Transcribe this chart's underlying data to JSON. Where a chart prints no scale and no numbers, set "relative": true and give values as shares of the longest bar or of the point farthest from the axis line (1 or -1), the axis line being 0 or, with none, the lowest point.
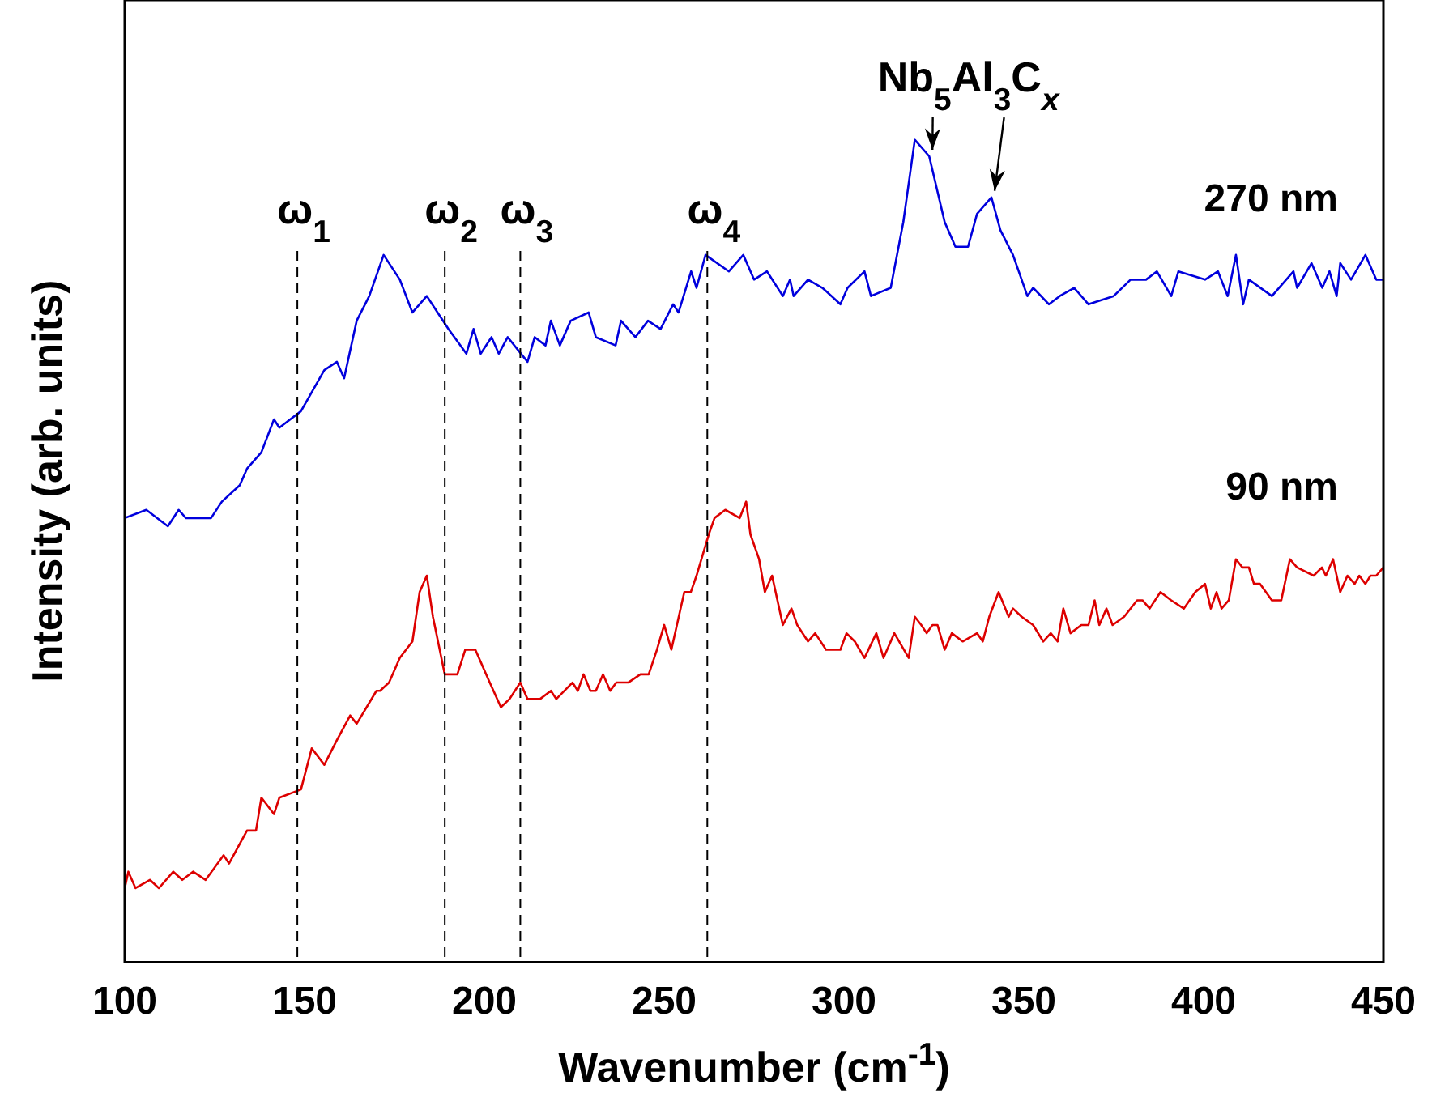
{
  "chart_data": {
    "type": "line",
    "relative": true,
    "xlabel": "Wavenumber (cm$^{-1}$)",
    "ylabel": "Intensity (arb. units)",
    "xlim": [
      100,
      450
    ],
    "xticks": [
      100,
      150,
      200,
      250,
      300,
      350,
      400,
      450
    ],
    "grid": false,
    "legend": false,
    "marker": "none",
    "line_style": "solid",
    "series": [
      {
        "name": "270 nm",
        "color": "#0000dd",
        "x": [
          100,
          106,
          112,
          115,
          117,
          124,
          127,
          132,
          134,
          138,
          141.5,
          143,
          149,
          155.5,
          159,
          161,
          164.5,
          168,
          172,
          176.5,
          180,
          184,
          187,
          190,
          195,
          197,
          199,
          202,
          204,
          206.5,
          212,
          214,
          217,
          218.5,
          221,
          224,
          229,
          231,
          236.5,
          238,
          242,
          245.5,
          249,
          252.5,
          254,
          257.5,
          259,
          261.5,
          268,
          272,
          275,
          278.6,
          283,
          285,
          286,
          290,
          294,
          299,
          301,
          305.7,
          307.5,
          313,
          316.5,
          319.7,
          323.7,
          328,
          331,
          334.5,
          337,
          341,
          343.5,
          347,
          351,
          352.6,
          357,
          360,
          364,
          368,
          375,
          379.7,
          384,
          387,
          391,
          393,
          400.4,
          404,
          406.7,
          409,
          411,
          412.6,
          419,
          425,
          426,
          430,
          433,
          435,
          437,
          438,
          441,
          445,
          448,
          450
        ],
        "values": [
          0.54,
          0.55,
          0.53,
          0.55,
          0.54,
          0.54,
          0.56,
          0.58,
          0.6,
          0.62,
          0.66,
          0.65,
          0.67,
          0.72,
          0.73,
          0.71,
          0.78,
          0.81,
          0.86,
          0.83,
          0.79,
          0.81,
          0.79,
          0.77,
          0.74,
          0.77,
          0.74,
          0.76,
          0.74,
          0.76,
          0.73,
          0.76,
          0.75,
          0.78,
          0.75,
          0.78,
          0.79,
          0.76,
          0.75,
          0.78,
          0.76,
          0.78,
          0.77,
          0.8,
          0.79,
          0.84,
          0.82,
          0.86,
          0.84,
          0.86,
          0.83,
          0.84,
          0.81,
          0.83,
          0.81,
          0.83,
          0.82,
          0.8,
          0.82,
          0.84,
          0.81,
          0.82,
          0.9,
          1.0,
          0.98,
          0.9,
          0.87,
          0.87,
          0.91,
          0.93,
          0.89,
          0.86,
          0.81,
          0.82,
          0.8,
          0.81,
          0.82,
          0.8,
          0.81,
          0.83,
          0.83,
          0.84,
          0.81,
          0.84,
          0.83,
          0.84,
          0.81,
          0.86,
          0.8,
          0.83,
          0.81,
          0.84,
          0.82,
          0.85,
          0.82,
          0.84,
          0.81,
          0.85,
          0.83,
          0.86,
          0.83,
          0.83
        ]
      },
      {
        "name": "90 nm",
        "color": "#dd0000",
        "x": [
          100,
          101,
          103,
          107,
          109.5,
          113.5,
          116,
          119,
          122.5,
          127.5,
          129,
          134,
          136.5,
          138,
          141.5,
          143,
          149,
          152,
          155.5,
          159,
          162.7,
          164.5,
          170,
          171,
          173.5,
          176.5,
          180,
          182,
          184,
          185.7,
          189,
          192.5,
          194.7,
          197.5,
          201.5,
          204.6,
          207,
          210,
          212,
          215.5,
          218.5,
          220,
          224.5,
          226,
          227.6,
          229.5,
          231,
          233,
          235,
          236.7,
          240,
          243.4,
          245.7,
          248,
          250,
          252,
          255.6,
          257.4,
          259,
          262.4,
          264,
          267,
          271,
          272.8,
          274,
          276.4,
          278,
          280,
          283,
          285.4,
          287,
          290,
          292,
          295,
          299,
          300.7,
          303,
          305.7,
          309,
          311,
          314,
          318,
          319.7,
          321.5,
          323,
          324.6,
          326,
          328,
          330,
          333,
          337,
          338.6,
          340.4,
          343,
          345.8,
          347,
          349.4,
          352.6,
          355.4,
          357.5,
          359.4,
          361,
          363,
          366,
          368,
          369.7,
          371,
          373,
          374.7,
          377.9,
          381.5,
          383,
          385,
          388,
          391,
          394.5,
          397.7,
          400.4,
          402,
          403.6,
          405,
          407,
          409,
          410.8,
          412.6,
          414,
          415.7,
          419,
          421.6,
          424,
          426,
          430.6,
          432.9,
          434,
          436,
          438,
          440,
          442,
          443.3,
          445,
          446.4,
          448,
          450
        ],
        "values": [
          0.09,
          0.11,
          0.09,
          0.1,
          0.09,
          0.11,
          0.1,
          0.11,
          0.1,
          0.13,
          0.12,
          0.16,
          0.16,
          0.2,
          0.18,
          0.2,
          0.21,
          0.26,
          0.24,
          0.27,
          0.3,
          0.29,
          0.33,
          0.33,
          0.34,
          0.37,
          0.39,
          0.45,
          0.47,
          0.42,
          0.35,
          0.35,
          0.38,
          0.38,
          0.34,
          0.31,
          0.32,
          0.34,
          0.32,
          0.32,
          0.33,
          0.32,
          0.34,
          0.33,
          0.35,
          0.33,
          0.33,
          0.35,
          0.33,
          0.34,
          0.34,
          0.35,
          0.35,
          0.38,
          0.41,
          0.38,
          0.45,
          0.45,
          0.47,
          0.52,
          0.54,
          0.55,
          0.54,
          0.56,
          0.52,
          0.49,
          0.45,
          0.47,
          0.41,
          0.43,
          0.41,
          0.39,
          0.4,
          0.38,
          0.38,
          0.4,
          0.39,
          0.37,
          0.4,
          0.37,
          0.4,
          0.37,
          0.42,
          0.41,
          0.4,
          0.41,
          0.41,
          0.38,
          0.4,
          0.39,
          0.4,
          0.39,
          0.42,
          0.45,
          0.42,
          0.43,
          0.42,
          0.41,
          0.39,
          0.4,
          0.39,
          0.43,
          0.4,
          0.41,
          0.41,
          0.44,
          0.41,
          0.43,
          0.41,
          0.42,
          0.44,
          0.44,
          0.43,
          0.45,
          0.44,
          0.43,
          0.45,
          0.46,
          0.43,
          0.45,
          0.43,
          0.44,
          0.49,
          0.48,
          0.48,
          0.46,
          0.46,
          0.44,
          0.44,
          0.49,
          0.48,
          0.47,
          0.48,
          0.47,
          0.49,
          0.45,
          0.47,
          0.46,
          0.47,
          0.46,
          0.47,
          0.47,
          0.48
        ]
      }
    ],
    "ref_lines": [
      {
        "axis": "x",
        "value": 148,
        "label": "ω$_{1}$",
        "line_style": "dashed",
        "color": "#000000"
      },
      {
        "axis": "x",
        "value": 189,
        "label": "ω$_{2}$",
        "line_style": "dashed",
        "color": "#000000"
      },
      {
        "axis": "x",
        "value": 210,
        "label": "ω$_{3}$",
        "line_style": "dashed",
        "color": "#000000"
      },
      {
        "axis": "x",
        "value": 262,
        "label": "ω$_{4}$",
        "line_style": "dashed",
        "color": "#000000"
      }
    ],
    "annotations": [
      {
        "text": "Nb$_{5}$Al$_{3}$C$_{x}$",
        "x": 323.7,
        "y": 0.98
      }
    ]
  }
}
